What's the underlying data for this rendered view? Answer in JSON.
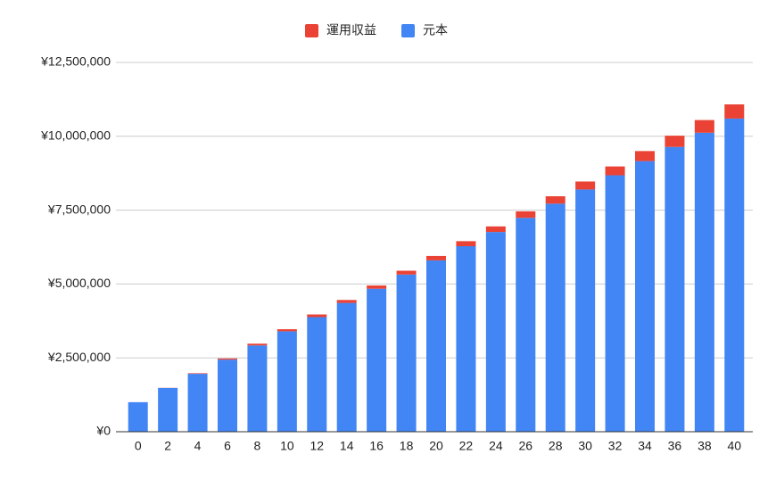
{
  "chart_data": {
    "type": "stacked_bar",
    "categories": [
      "0",
      "2",
      "4",
      "6",
      "8",
      "10",
      "12",
      "14",
      "16",
      "18",
      "20",
      "22",
      "24",
      "26",
      "28",
      "30",
      "32",
      "34",
      "36",
      "38",
      "40"
    ],
    "series": [
      {
        "name": "元本",
        "color": "#4285f4",
        "values": [
          1000000,
          1480000,
          1960000,
          2440000,
          2920000,
          3400000,
          3880000,
          4360000,
          4840000,
          5320000,
          5800000,
          6280000,
          6760000,
          7240000,
          7720000,
          8200000,
          8680000,
          9160000,
          9640000,
          10120000,
          10600000
        ]
      },
      {
        "name": "運用収益",
        "color": "#ea4335",
        "values": [
          0,
          5000,
          20000,
          40000,
          60000,
          70000,
          90000,
          100000,
          110000,
          130000,
          150000,
          170000,
          190000,
          220000,
          250000,
          270000,
          300000,
          340000,
          380000,
          430000,
          480000
        ]
      }
    ],
    "ylim": [
      0,
      12500000
    ],
    "yticks": [
      {
        "value": 0,
        "label": "¥0"
      },
      {
        "value": 2500000,
        "label": "¥2,500,000"
      },
      {
        "value": 5000000,
        "label": "¥5,000,000"
      },
      {
        "value": 7500000,
        "label": "¥7,500,000"
      },
      {
        "value": 10000000,
        "label": "¥10,000,000"
      },
      {
        "value": 12500000,
        "label": "¥12,500,000"
      }
    ],
    "grid": true
  }
}
